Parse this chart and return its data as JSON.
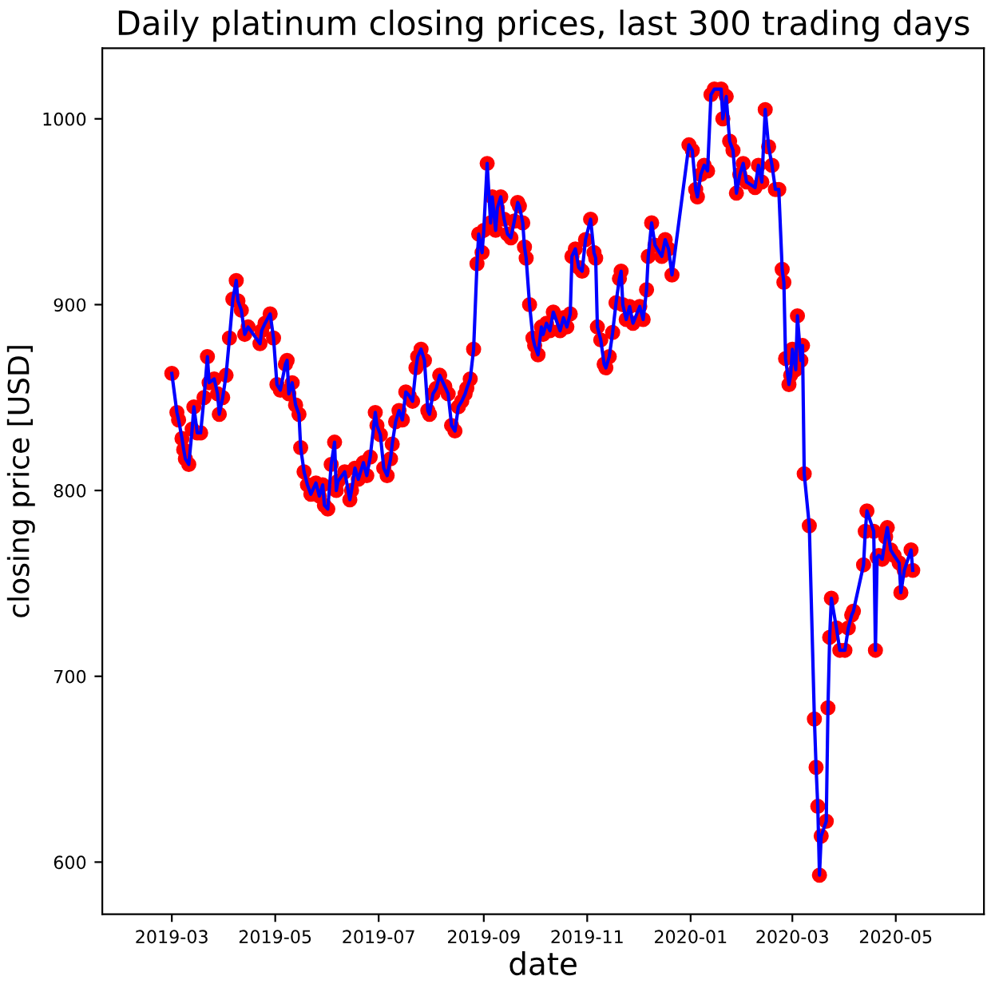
{
  "chart_data": {
    "type": "line",
    "title": "Daily platinum closing prices, last 300 trading days",
    "xlabel": "date",
    "ylabel": "closing price [USD]",
    "x": [
      "2019-03-01",
      "2019-03-04",
      "2019-03-05",
      "2019-03-07",
      "2019-03-08",
      "2019-03-09",
      "2019-03-11",
      "2019-03-13",
      "2019-03-14",
      "2019-03-16",
      "2019-03-18",
      "2019-03-20",
      "2019-03-22",
      "2019-03-23",
      "2019-03-26",
      "2019-03-28",
      "2019-03-29",
      "2019-03-31",
      "2019-04-02",
      "2019-04-04",
      "2019-04-06",
      "2019-04-08",
      "2019-04-09",
      "2019-04-11",
      "2019-04-13",
      "2019-04-15",
      "2019-04-22",
      "2019-04-23",
      "2019-04-25",
      "2019-04-28",
      "2019-04-30",
      "2019-05-02",
      "2019-05-04",
      "2019-05-07",
      "2019-05-08",
      "2019-05-09",
      "2019-05-11",
      "2019-05-13",
      "2019-05-15",
      "2019-05-16",
      "2019-05-18",
      "2019-05-20",
      "2019-05-22",
      "2019-05-25",
      "2019-05-27",
      "2019-05-29",
      "2019-05-30",
      "2019-06-01",
      "2019-06-03",
      "2019-06-05",
      "2019-06-06",
      "2019-06-07",
      "2019-06-11",
      "2019-06-14",
      "2019-06-15",
      "2019-06-17",
      "2019-06-19",
      "2019-06-22",
      "2019-06-24",
      "2019-06-26",
      "2019-06-29",
      "2019-06-30",
      "2019-07-02",
      "2019-07-04",
      "2019-07-06",
      "2019-07-08",
      "2019-07-09",
      "2019-07-11",
      "2019-07-13",
      "2019-07-15",
      "2019-07-17",
      "2019-07-19",
      "2019-07-21",
      "2019-07-23",
      "2019-07-24",
      "2019-07-26",
      "2019-07-28",
      "2019-07-30",
      "2019-07-31",
      "2019-08-02",
      "2019-08-04",
      "2019-08-06",
      "2019-08-09",
      "2019-08-11",
      "2019-08-13",
      "2019-08-15",
      "2019-08-17",
      "2019-08-19",
      "2019-08-21",
      "2019-08-22",
      "2019-08-24",
      "2019-08-26",
      "2019-08-28",
      "2019-08-29",
      "2019-08-31",
      "2019-09-01",
      "2019-09-03",
      "2019-09-05",
      "2019-09-06",
      "2019-09-08",
      "2019-09-09",
      "2019-09-11",
      "2019-09-13",
      "2019-09-15",
      "2019-09-17",
      "2019-09-19",
      "2019-09-21",
      "2019-09-22",
      "2019-09-24",
      "2019-09-25",
      "2019-09-26",
      "2019-09-28",
      "2019-09-30",
      "2019-10-01",
      "2019-10-03",
      "2019-10-05",
      "2019-10-06",
      "2019-10-08",
      "2019-10-10",
      "2019-10-12",
      "2019-10-16",
      "2019-10-18",
      "2019-10-20",
      "2019-10-22",
      "2019-10-23",
      "2019-10-25",
      "2019-10-27",
      "2019-10-29",
      "2019-10-31",
      "2019-11-03",
      "2019-11-05",
      "2019-11-06",
      "2019-11-07",
      "2019-11-09",
      "2019-11-11",
      "2019-11-12",
      "2019-11-14",
      "2019-11-16",
      "2019-11-18",
      "2019-11-20",
      "2019-11-21",
      "2019-11-22",
      "2019-11-24",
      "2019-11-26",
      "2019-11-28",
      "2019-12-02",
      "2019-12-04",
      "2019-12-06",
      "2019-12-07",
      "2019-12-09",
      "2019-12-11",
      "2019-12-15",
      "2019-12-17",
      "2019-12-19",
      "2019-12-21",
      "2019-12-31",
      "2020-01-02",
      "2020-01-04",
      "2020-01-05",
      "2020-01-07",
      "2020-01-09",
      "2020-01-11",
      "2020-01-13",
      "2020-01-15",
      "2020-01-19",
      "2020-01-20",
      "2020-01-22",
      "2020-01-24",
      "2020-01-26",
      "2020-01-28",
      "2020-01-30",
      "2020-02-01",
      "2020-02-03",
      "2020-02-08",
      "2020-02-10",
      "2020-02-12",
      "2020-02-14",
      "2020-02-16",
      "2020-02-18",
      "2020-02-20",
      "2020-02-22",
      "2020-02-24",
      "2020-02-25",
      "2020-02-26",
      "2020-02-28",
      "2020-02-29",
      "2020-03-01",
      "2020-03-03",
      "2020-03-04",
      "2020-03-06",
      "2020-03-07",
      "2020-03-08",
      "2020-03-11",
      "2020-03-14",
      "2020-03-15",
      "2020-03-16",
      "2020-03-17",
      "2020-03-18",
      "2020-03-21",
      "2020-03-22",
      "2020-03-23",
      "2020-03-24",
      "2020-03-27",
      "2020-03-29",
      "2020-04-01",
      "2020-04-03",
      "2020-04-05",
      "2020-04-06",
      "2020-04-12",
      "2020-04-13",
      "2020-04-14",
      "2020-04-18",
      "2020-04-19",
      "2020-04-20",
      "2020-04-21",
      "2020-04-23",
      "2020-04-25",
      "2020-04-26",
      "2020-04-28",
      "2020-04-30",
      "2020-05-03",
      "2020-05-04",
      "2020-05-06",
      "2020-05-10",
      "2020-05-11"
    ],
    "series": [
      {
        "type": "scatter",
        "color": "#ff0000",
        "marker": "circle",
        "values": [
          863,
          842,
          838,
          828,
          822,
          817,
          814,
          833,
          845,
          831,
          831,
          850,
          872,
          858,
          860,
          852,
          841,
          850,
          862,
          882,
          903,
          913,
          902,
          897,
          884,
          888,
          879,
          886,
          890,
          895,
          882,
          857,
          854,
          868,
          870,
          852,
          858,
          846,
          841,
          823,
          810,
          803,
          798,
          804,
          797,
          803,
          792,
          790,
          814,
          826,
          800,
          805,
          810,
          795,
          800,
          812,
          806,
          815,
          808,
          818,
          842,
          835,
          830,
          812,
          808,
          817,
          825,
          837,
          843,
          838,
          853,
          851,
          848,
          866,
          872,
          876,
          870,
          843,
          841,
          852,
          855,
          862,
          856,
          852,
          835,
          832,
          845,
          848,
          852,
          855,
          860,
          876,
          922,
          938,
          928,
          940,
          976,
          944,
          958,
          940,
          952,
          958,
          946,
          938,
          936,
          945,
          955,
          953,
          944,
          931,
          925,
          900,
          882,
          878,
          873,
          888,
          884,
          890,
          886,
          896,
          886,
          893,
          888,
          895,
          926,
          930,
          920,
          918,
          935,
          946,
          928,
          925,
          888,
          881,
          868,
          866,
          872,
          885,
          901,
          914,
          918,
          900,
          892,
          899,
          890,
          899,
          892,
          908,
          926,
          944,
          932,
          926,
          935,
          930,
          916,
          986,
          983,
          962,
          958,
          970,
          975,
          972,
          1013,
          1016,
          1016,
          1000,
          1012,
          988,
          983,
          960,
          970,
          976,
          966,
          963,
          975,
          966,
          1005,
          985,
          975,
          962,
          962,
          919,
          912,
          871,
          857,
          862,
          876,
          865,
          894,
          870,
          878,
          809,
          781,
          677,
          651,
          630,
          593,
          614,
          622,
          683,
          721,
          742,
          726,
          714,
          714,
          726,
          733,
          735,
          760,
          778,
          789,
          778,
          714,
          764,
          765,
          763,
          775,
          780,
          768,
          765,
          761,
          745,
          757,
          768,
          757
        ]
      },
      {
        "color": "#0000ff",
        "marker": "none",
        "line_style": "solid",
        "values": [
          863,
          842,
          838,
          828,
          822,
          817,
          814,
          833,
          845,
          831,
          831,
          850,
          872,
          858,
          860,
          852,
          841,
          850,
          862,
          882,
          903,
          913,
          902,
          897,
          884,
          888,
          879,
          886,
          890,
          895,
          882,
          857,
          854,
          868,
          870,
          852,
          858,
          846,
          841,
          823,
          810,
          803,
          798,
          804,
          797,
          803,
          792,
          790,
          814,
          826,
          800,
          805,
          810,
          795,
          800,
          812,
          806,
          815,
          808,
          818,
          842,
          835,
          830,
          812,
          808,
          817,
          825,
          837,
          843,
          838,
          853,
          851,
          848,
          866,
          872,
          876,
          870,
          843,
          841,
          852,
          855,
          862,
          856,
          852,
          835,
          832,
          845,
          848,
          852,
          855,
          860,
          876,
          922,
          938,
          928,
          940,
          976,
          944,
          958,
          940,
          952,
          958,
          946,
          938,
          936,
          945,
          955,
          953,
          944,
          931,
          925,
          900,
          882,
          878,
          873,
          888,
          884,
          890,
          886,
          896,
          886,
          893,
          888,
          895,
          926,
          930,
          920,
          918,
          935,
          946,
          928,
          925,
          888,
          881,
          868,
          866,
          872,
          885,
          901,
          914,
          918,
          900,
          892,
          899,
          890,
          899,
          892,
          908,
          926,
          944,
          932,
          926,
          935,
          930,
          916,
          986,
          983,
          962,
          958,
          970,
          975,
          972,
          1013,
          1016,
          1016,
          1000,
          1012,
          988,
          983,
          960,
          970,
          976,
          966,
          963,
          975,
          966,
          1005,
          985,
          975,
          962,
          962,
          919,
          912,
          871,
          857,
          862,
          876,
          865,
          894,
          870,
          878,
          809,
          781,
          677,
          651,
          630,
          593,
          614,
          622,
          683,
          721,
          742,
          726,
          714,
          714,
          726,
          733,
          735,
          760,
          778,
          789,
          778,
          714,
          764,
          765,
          763,
          775,
          780,
          768,
          765,
          761,
          745,
          757,
          768,
          757
        ]
      }
    ],
    "xlim": [
      "2019-01-19",
      "2020-06-22"
    ],
    "xticks": [
      {
        "value": "2019-03-01",
        "label": "2019-03"
      },
      {
        "value": "2019-05-01",
        "label": "2019-05"
      },
      {
        "value": "2019-07-01",
        "label": "2019-07"
      },
      {
        "value": "2019-09-01",
        "label": "2019-09"
      },
      {
        "value": "2019-11-01",
        "label": "2019-11"
      },
      {
        "value": "2020-01-01",
        "label": "2020-01"
      },
      {
        "value": "2020-03-01",
        "label": "2020-03"
      },
      {
        "value": "2020-05-01",
        "label": "2020-05"
      }
    ],
    "ylim": [
      572,
      1038
    ],
    "yticks": [
      600,
      700,
      800,
      900,
      1000
    ],
    "grid": false
  }
}
